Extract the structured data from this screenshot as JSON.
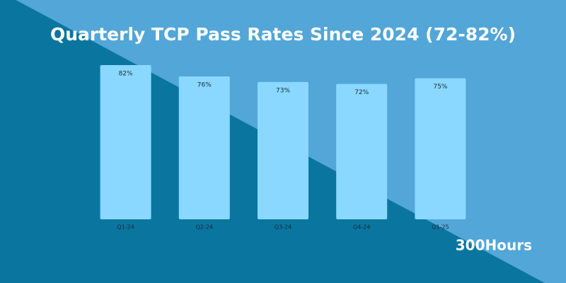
{
  "chart_data": {
    "type": "bar",
    "title": "Quarterly TCP Pass Rates Since 2024 (72-82%)",
    "categories": [
      "Q1-24",
      "Q2-24",
      "Q3-24",
      "Q4-24",
      "Q1-25"
    ],
    "values": [
      82,
      76,
      73,
      72,
      75
    ],
    "value_labels": [
      "82%",
      "76%",
      "73%",
      "72%",
      "75%"
    ],
    "color": "#8ad8ff"
  },
  "brand": "300Hours"
}
